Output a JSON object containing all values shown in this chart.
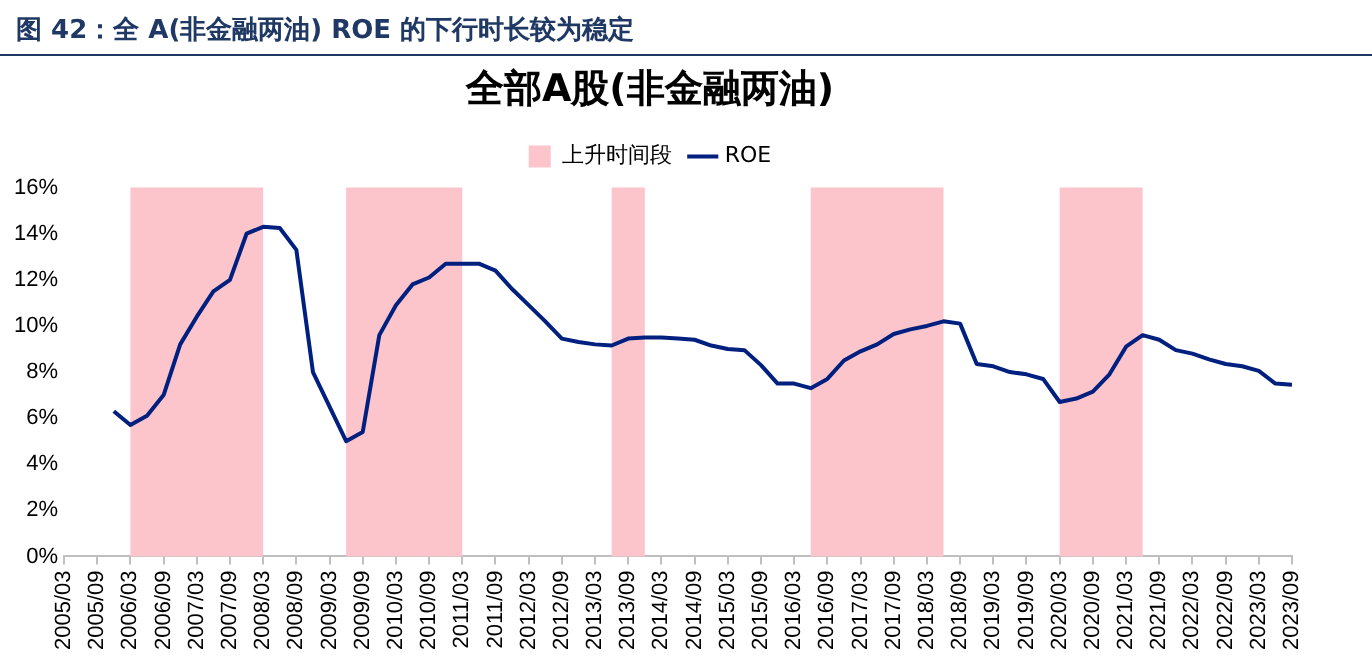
{
  "chart_data": {
    "type": "line",
    "title": "图 42：全 A(非金融两油) ROE 的下行时长较为稳定",
    "subtitle": "全部A股(非金融两油)",
    "x": [
      "2005-12",
      "2006-03",
      "2006-06",
      "2006-09",
      "2006-12",
      "2007-03",
      "2007-06",
      "2007-09",
      "2007-12",
      "2008-03",
      "2008-06",
      "2008-09",
      "2008-12",
      "2009-03",
      "2009-06",
      "2009-09",
      "2009-12",
      "2010-03",
      "2010-06",
      "2010-09",
      "2010-12",
      "2011-03",
      "2011-06",
      "2011-09",
      "2011-12",
      "2012-03",
      "2012-06",
      "2012-09",
      "2012-12",
      "2013-03",
      "2013-06",
      "2013-09",
      "2013-12",
      "2014-03",
      "2014-06",
      "2014-09",
      "2014-12",
      "2015-03",
      "2015-06",
      "2015-09",
      "2015-12",
      "2016-03",
      "2016-06",
      "2016-09",
      "2016-12",
      "2017-03",
      "2017-06",
      "2017-09",
      "2017-12",
      "2018-03",
      "2018-06",
      "2018-09",
      "2018-12",
      "2019-03",
      "2019-06",
      "2019-09",
      "2019-12",
      "2020-03",
      "2020-06",
      "2020-09",
      "2020-12",
      "2021-03",
      "2021-06",
      "2021-09",
      "2021-12",
      "2022-03",
      "2022-06",
      "2022-09",
      "2022-12",
      "2023-03",
      "2023-06",
      "2023-09"
    ],
    "series": [
      {
        "name": "ROE",
        "color": "#002080",
        "values": [
          6.3,
          5.7,
          6.1,
          7.0,
          9.2,
          10.4,
          11.5,
          12.0,
          14.0,
          14.3,
          14.25,
          13.3,
          8.0,
          6.5,
          5.0,
          5.4,
          9.6,
          10.9,
          11.8,
          12.1,
          12.7,
          12.7,
          12.7,
          12.4,
          11.6,
          10.9,
          10.2,
          9.45,
          9.3,
          9.2,
          9.15,
          9.45,
          9.5,
          9.5,
          9.45,
          9.4,
          9.15,
          9.0,
          8.95,
          8.3,
          7.5,
          7.5,
          7.3,
          7.7,
          8.5,
          8.9,
          9.2,
          9.65,
          9.85,
          10.0,
          10.2,
          10.1,
          8.35,
          8.25,
          8.0,
          7.9,
          7.7,
          6.7,
          6.85,
          7.15,
          7.9,
          9.1,
          9.6,
          9.4,
          8.95,
          8.8,
          8.55,
          8.35,
          8.25,
          8.05,
          7.5,
          7.45
        ]
      }
    ],
    "bands": [
      {
        "axis": "x",
        "from": "2006-03",
        "to": "2008-03",
        "label": "上升时间段",
        "color": "#fcc5cc"
      },
      {
        "axis": "x",
        "from": "2009-06",
        "to": "2011-03",
        "color": "#fcc5cc"
      },
      {
        "axis": "x",
        "from": "2013-06",
        "to": "2013-12",
        "color": "#fcc5cc"
      },
      {
        "axis": "x",
        "from": "2016-06",
        "to": "2018-06",
        "color": "#fcc5cc"
      },
      {
        "axis": "x",
        "from": "2020-03",
        "to": "2021-06",
        "color": "#fcc5cc"
      }
    ],
    "xlim": [
      "2005-03",
      "2023-09"
    ],
    "xticks": [
      {
        "value": "2005-03",
        "label": "2005/03"
      },
      {
        "value": "2005-09",
        "label": "2005/09"
      },
      {
        "value": "2006-03",
        "label": "2006/03"
      },
      {
        "value": "2006-09",
        "label": "2006/09"
      },
      {
        "value": "2007-03",
        "label": "2007/03"
      },
      {
        "value": "2007-09",
        "label": "2007/09"
      },
      {
        "value": "2008-03",
        "label": "2008/03"
      },
      {
        "value": "2008-09",
        "label": "2008/09"
      },
      {
        "value": "2009-03",
        "label": "2009/03"
      },
      {
        "value": "2009-09",
        "label": "2009/09"
      },
      {
        "value": "2010-03",
        "label": "2010/03"
      },
      {
        "value": "2010-09",
        "label": "2010/09"
      },
      {
        "value": "2011-03",
        "label": "2011/03"
      },
      {
        "value": "2011-09",
        "label": "2011/09"
      },
      {
        "value": "2012-03",
        "label": "2012/03"
      },
      {
        "value": "2012-09",
        "label": "2012/09"
      },
      {
        "value": "2013-03",
        "label": "2013/03"
      },
      {
        "value": "2013-09",
        "label": "2013/09"
      },
      {
        "value": "2014-03",
        "label": "2014/03"
      },
      {
        "value": "2014-09",
        "label": "2014/09"
      },
      {
        "value": "2015-03",
        "label": "2015/03"
      },
      {
        "value": "2015-09",
        "label": "2015/09"
      },
      {
        "value": "2016-03",
        "label": "2016/03"
      },
      {
        "value": "2016-09",
        "label": "2016/09"
      },
      {
        "value": "2017-03",
        "label": "2017/03"
      },
      {
        "value": "2017-09",
        "label": "2017/09"
      },
      {
        "value": "2018-03",
        "label": "2018/03"
      },
      {
        "value": "2018-09",
        "label": "2018/09"
      },
      {
        "value": "2019-03",
        "label": "2019/03"
      },
      {
        "value": "2019-09",
        "label": "2019/09"
      },
      {
        "value": "2020-03",
        "label": "2020/03"
      },
      {
        "value": "2020-09",
        "label": "2020/09"
      },
      {
        "value": "2021-03",
        "label": "2021/03"
      },
      {
        "value": "2021-09",
        "label": "2021/09"
      },
      {
        "value": "2022-03",
        "label": "2022/03"
      },
      {
        "value": "2022-09",
        "label": "2022/09"
      },
      {
        "value": "2023-03",
        "label": "2023/03"
      },
      {
        "value": "2023-09",
        "label": "2023/09"
      }
    ],
    "ylim": [
      0,
      16
    ],
    "yticks": [
      {
        "value": 0,
        "label": "0%"
      },
      {
        "value": 2,
        "label": "2%"
      },
      {
        "value": 4,
        "label": "4%"
      },
      {
        "value": 6,
        "label": "6%"
      },
      {
        "value": 8,
        "label": "8%"
      },
      {
        "value": 10,
        "label": "10%"
      },
      {
        "value": 12,
        "label": "12%"
      },
      {
        "value": 14,
        "label": "14%"
      },
      {
        "value": 16,
        "label": "16%"
      }
    ],
    "legend": "top",
    "marker": "none",
    "line_style": "solid"
  }
}
